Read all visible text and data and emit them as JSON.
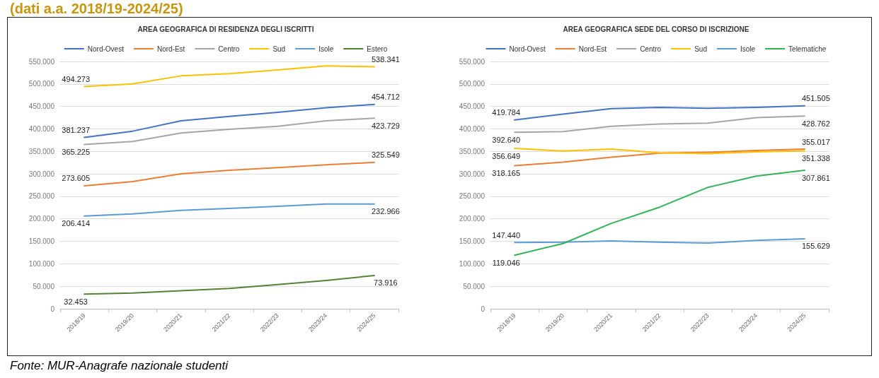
{
  "chart_data": [
    {
      "type": "line",
      "title": "AREA GEOGRAFICA DI RESIDENZA DEGLI ISCRITTI",
      "annotations": [
        "(dati a.a. 2018/19-2024/25)",
        "Fonte: MUR-Anagrafe nazionale studenti"
      ],
      "categories": [
        "2018/19",
        "2019/20",
        "2020/21",
        "2021/22",
        "2022/23",
        "2023/24",
        "2024/25"
      ],
      "ylim": [
        0,
        550000
      ],
      "yticks": [
        {
          "value": 0,
          "label": "0"
        },
        {
          "value": 50000,
          "label": "50.000"
        },
        {
          "value": 100000,
          "label": "100.000"
        },
        {
          "value": 150000,
          "label": "150.000"
        },
        {
          "value": 200000,
          "label": "200.000"
        },
        {
          "value": 250000,
          "label": "250.000"
        },
        {
          "value": 300000,
          "label": "300.000"
        },
        {
          "value": 350000,
          "label": "350.000"
        },
        {
          "value": 400000,
          "label": "400.000"
        },
        {
          "value": 450000,
          "label": "450.000"
        },
        {
          "value": 500000,
          "label": "500.000"
        },
        {
          "value": 550000,
          "label": "550.000"
        }
      ],
      "grid": "y",
      "legend": "top",
      "marker": "none",
      "line_style": "solid",
      "series": [
        {
          "name": "Nord-Ovest",
          "color": "#4472c4",
          "values": [
            381237,
            395000,
            418000,
            428000,
            437000,
            447000,
            454712
          ],
          "value_labels": [
            "381.237",
            null,
            null,
            null,
            null,
            null,
            "454.712"
          ]
        },
        {
          "name": "Nord-Est",
          "color": "#ed7d31",
          "values": [
            273605,
            283000,
            300000,
            308000,
            314000,
            320000,
            325549
          ],
          "value_labels": [
            "273.605",
            null,
            null,
            null,
            null,
            null,
            "325.549"
          ]
        },
        {
          "name": "Centro",
          "color": "#a5a5a5",
          "values": [
            365225,
            372000,
            391000,
            399000,
            406000,
            418000,
            423729
          ],
          "value_labels": [
            "365.225",
            null,
            null,
            null,
            null,
            null,
            "423.729"
          ]
        },
        {
          "name": "Sud",
          "color": "#ffc000",
          "values": [
            494273,
            500000,
            518000,
            523000,
            531000,
            540000,
            538341
          ],
          "value_labels": [
            "494.273",
            null,
            null,
            null,
            null,
            null,
            "538.341"
          ]
        },
        {
          "name": "Isole",
          "color": "#5b9bd5",
          "values": [
            206414,
            211000,
            219000,
            223000,
            228000,
            233000,
            232966
          ],
          "value_labels": [
            "206.414",
            null,
            null,
            null,
            null,
            null,
            "232.966"
          ]
        },
        {
          "name": "Estero",
          "color": "#548235",
          "values": [
            32453,
            35000,
            40000,
            45000,
            54000,
            63000,
            73916
          ],
          "value_labels": [
            "32.453",
            null,
            null,
            null,
            null,
            null,
            "73.916"
          ]
        }
      ]
    },
    {
      "type": "line",
      "title": "AREA GEOGRAFICA SEDE DEL CORSO DI ISCRIZIONE",
      "categories": [
        "2018/19",
        "2019/20",
        "2020/21",
        "2021/22",
        "2022/23",
        "2023/24",
        "2024/25"
      ],
      "ylim": [
        0,
        550000
      ],
      "yticks": [
        {
          "value": 0,
          "label": "0"
        },
        {
          "value": 50000,
          "label": "50.000"
        },
        {
          "value": 100000,
          "label": "100.000"
        },
        {
          "value": 150000,
          "label": "150.000"
        },
        {
          "value": 200000,
          "label": "200.000"
        },
        {
          "value": 250000,
          "label": "250.000"
        },
        {
          "value": 300000,
          "label": "300.000"
        },
        {
          "value": 350000,
          "label": "350.000"
        },
        {
          "value": 400000,
          "label": "400.000"
        },
        {
          "value": 450000,
          "label": "450.000"
        },
        {
          "value": 500000,
          "label": "500.000"
        },
        {
          "value": 550000,
          "label": "550.000"
        }
      ],
      "grid": "y",
      "legend": "top",
      "marker": "none",
      "line_style": "solid",
      "series": [
        {
          "name": "Nord-Ovest",
          "color": "#4472c4",
          "values": [
            419784,
            433000,
            445000,
            448000,
            446000,
            448000,
            451505
          ],
          "value_labels": [
            "419.784",
            null,
            null,
            null,
            null,
            null,
            "451.505"
          ]
        },
        {
          "name": "Nord-Est",
          "color": "#ed7d31",
          "values": [
            318165,
            326000,
            337000,
            346000,
            348000,
            352000,
            355017
          ],
          "value_labels": [
            "318.165",
            null,
            null,
            null,
            null,
            null,
            "355.017"
          ]
        },
        {
          "name": "Centro",
          "color": "#a5a5a5",
          "values": [
            392640,
            394000,
            406000,
            411000,
            413000,
            425000,
            428762
          ],
          "value_labels": [
            "392.640",
            null,
            null,
            null,
            null,
            null,
            "428.762"
          ]
        },
        {
          "name": "Sud",
          "color": "#ffc000",
          "values": [
            356649,
            351000,
            355000,
            347000,
            345000,
            349000,
            351338
          ],
          "value_labels": [
            "356.649",
            null,
            null,
            null,
            null,
            null,
            "351.338"
          ]
        },
        {
          "name": "Isole",
          "color": "#5b9bd5",
          "values": [
            147440,
            148000,
            151000,
            148000,
            146000,
            152000,
            155629
          ],
          "value_labels": [
            "147.440",
            null,
            null,
            null,
            null,
            null,
            "155.629"
          ]
        },
        {
          "name": "Telematiche",
          "color": "#33b356",
          "values": [
            119046,
            145000,
            190000,
            226000,
            270000,
            295000,
            307861
          ],
          "value_labels": [
            "119.046",
            null,
            null,
            null,
            null,
            null,
            "307.861"
          ]
        }
      ]
    }
  ]
}
